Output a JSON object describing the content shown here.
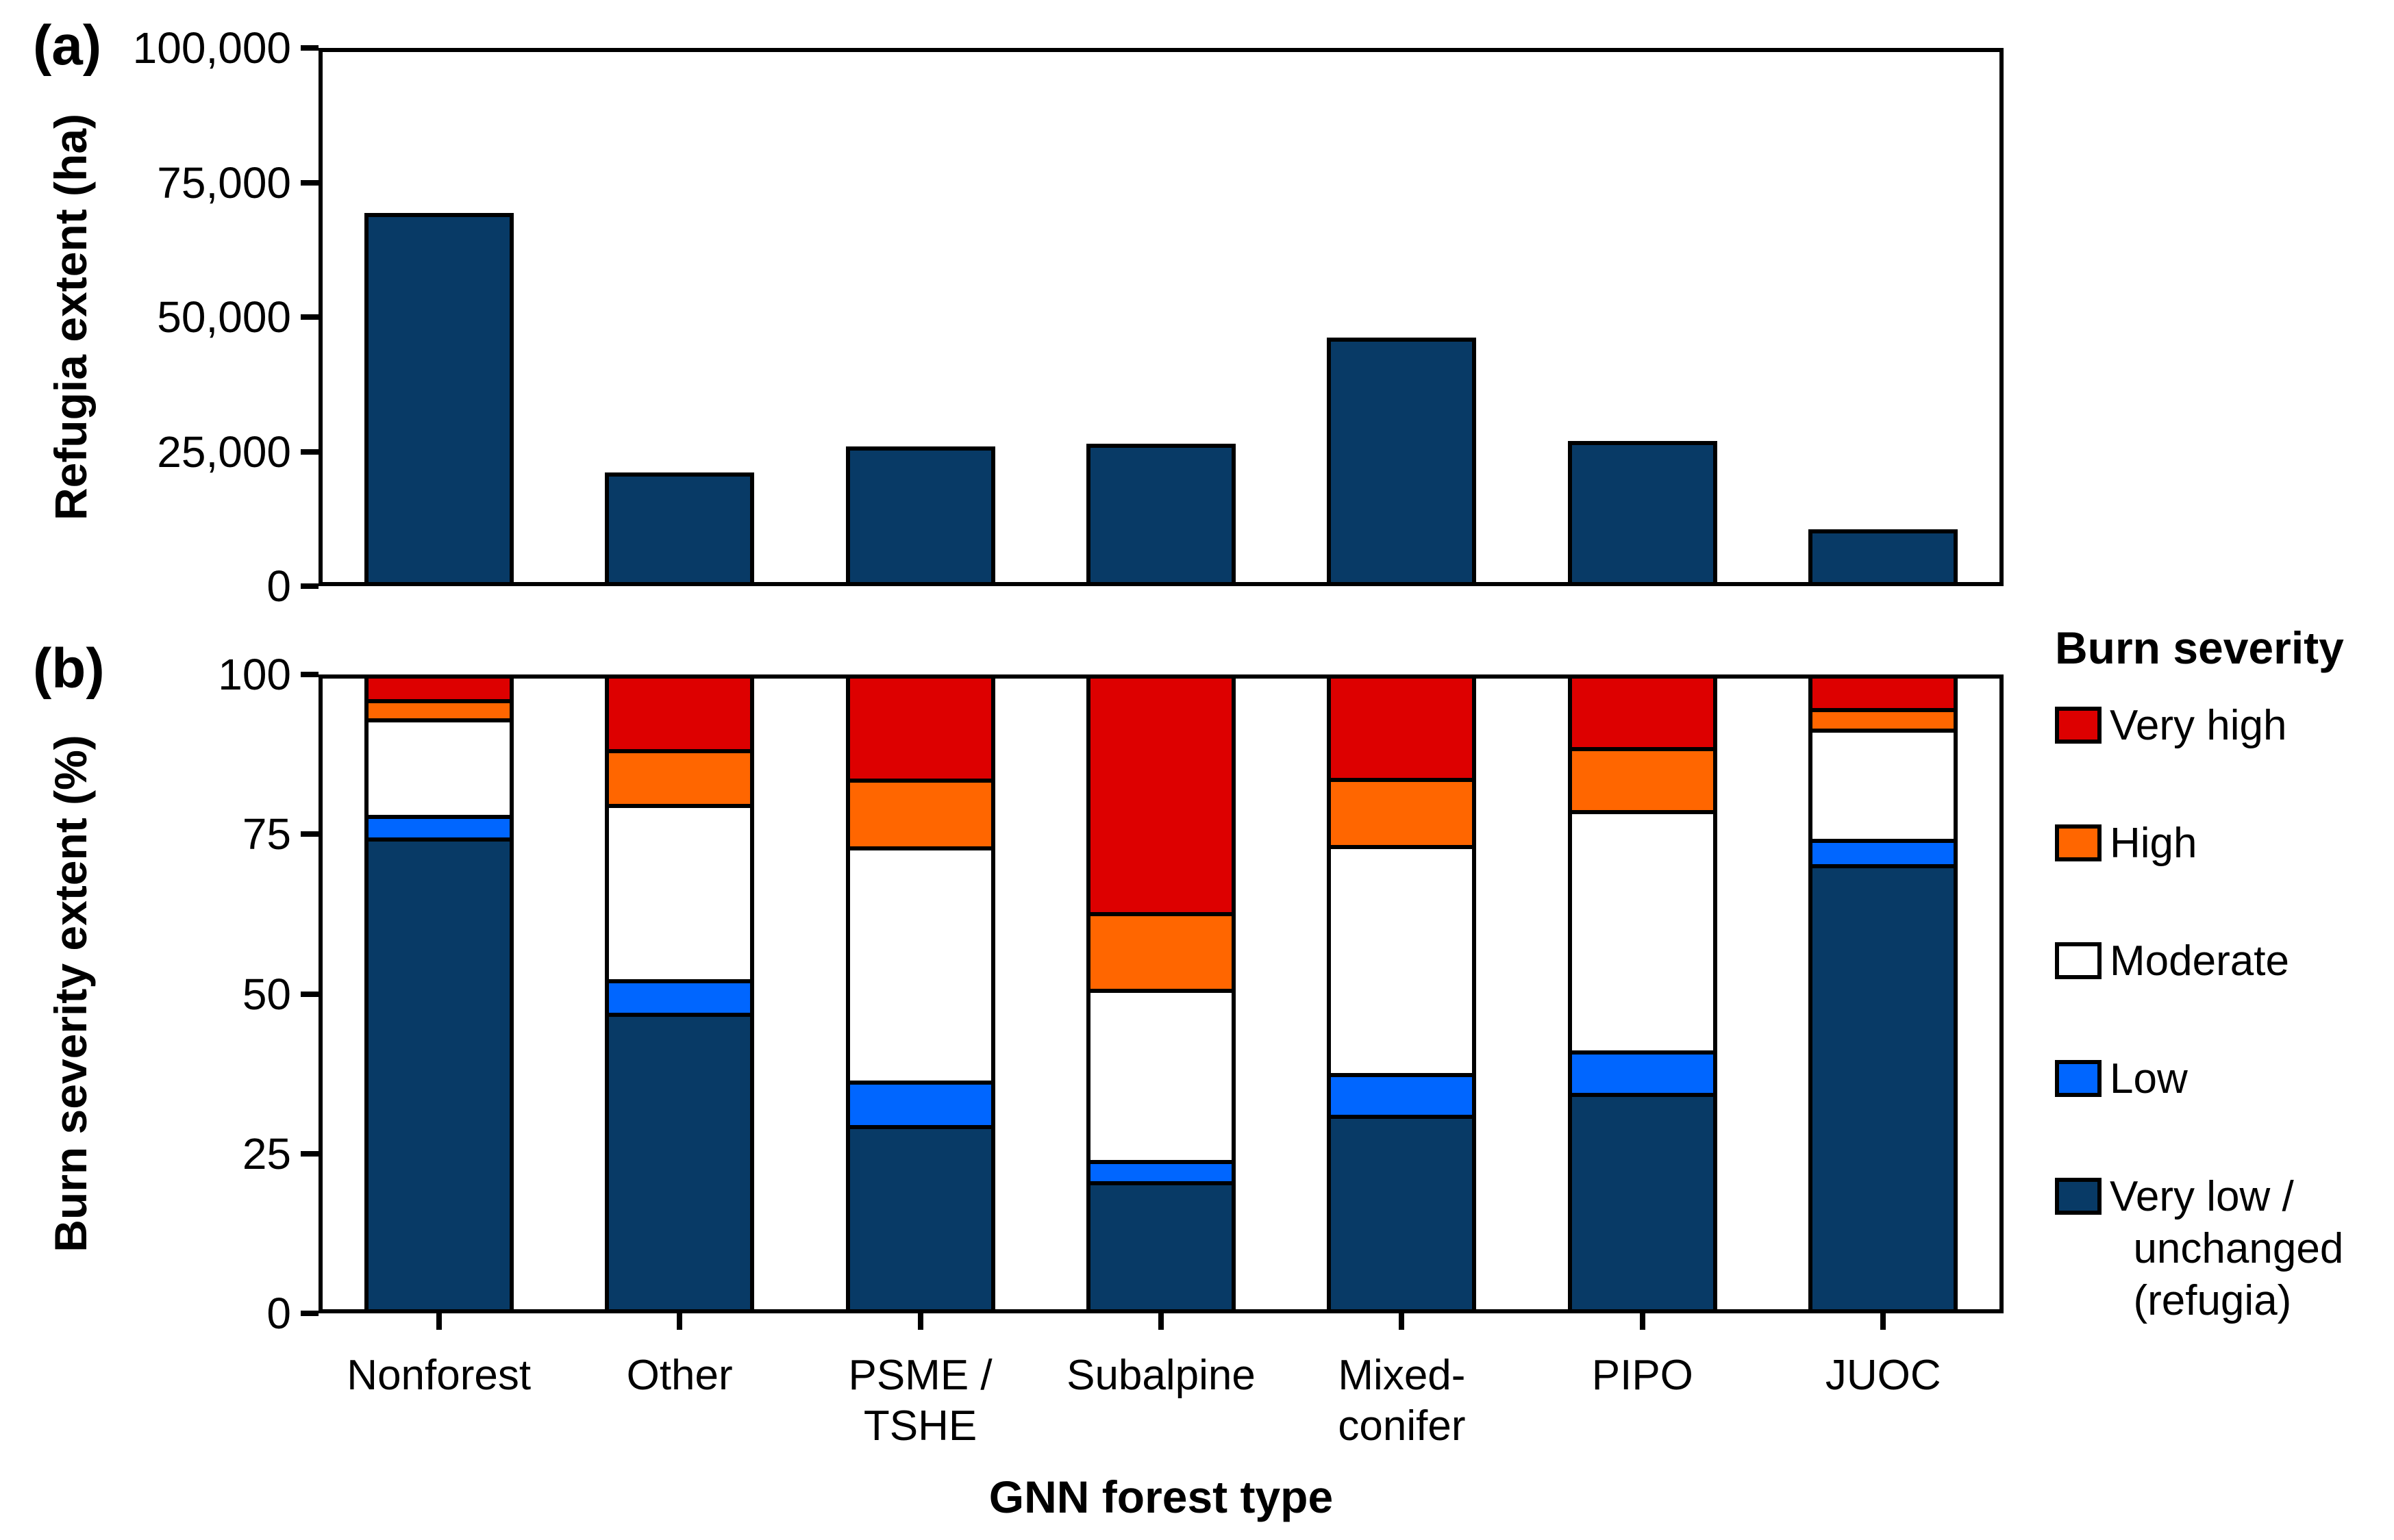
{
  "figure": {
    "panel_a_label": "(a)",
    "panel_b_label": "(b)",
    "panel_a_ylabel": "Refugia extent (ha)",
    "panel_b_ylabel": "Burn severity extent (%)",
    "xlabel": "GNN forest type"
  },
  "legend": {
    "title": "Burn severity",
    "items": [
      {
        "label": "Very high",
        "color": "#dd0000"
      },
      {
        "label": "High",
        "color": "#ff6600"
      },
      {
        "label": "Moderate",
        "color": "#ffffff"
      },
      {
        "label": "Low",
        "color": "#0066ff"
      },
      {
        "label": "Very low /\n  unchanged\n  (refugia)",
        "color": "#083a66"
      }
    ]
  },
  "chart_data": [
    {
      "type": "bar",
      "panel": "a",
      "title": "Refugia extent by GNN forest type",
      "categories": [
        "Nonforest",
        "Other",
        "PSME /\nTSHE",
        "Subalpine",
        "Mixed-\nconifer",
        "PIPO",
        "JUOC"
      ],
      "values": [
        69400,
        21100,
        25900,
        26400,
        46200,
        27000,
        10600
      ],
      "xlabel": "GNN forest type",
      "ylabel": "Refugia extent (ha)",
      "ylim": [
        0,
        100000
      ],
      "yticks": [
        "0",
        "25,000",
        "50,000",
        "75,000",
        "100,000"
      ],
      "bar_color": "#083a66",
      "grid": false
    },
    {
      "type": "bar",
      "panel": "b",
      "stacked": true,
      "title": "Burn severity extent by GNN forest type",
      "categories": [
        "Nonforest",
        "Other",
        "PSME /\nTSHE",
        "Subalpine",
        "Mixed-\nconifer",
        "PIPO",
        "JUOC"
      ],
      "series": [
        {
          "name": "Very low / unchanged (refugia)",
          "color": "#083a66",
          "values": [
            74.5,
            47.0,
            29.5,
            20.7,
            31.1,
            34.5,
            70.3
          ]
        },
        {
          "name": "Low",
          "color": "#0066ff",
          "values": [
            3.5,
            5.3,
            6.9,
            3.3,
            6.5,
            6.7,
            4.0
          ]
        },
        {
          "name": "Moderate",
          "color": "#ffffff",
          "values": [
            15.1,
            27.4,
            36.7,
            26.8,
            35.7,
            37.6,
            17.2
          ]
        },
        {
          "name": "High",
          "color": "#ff6600",
          "values": [
            3.0,
            8.6,
            10.6,
            12.0,
            10.5,
            9.8,
            3.2
          ]
        },
        {
          "name": "Very high",
          "color": "#dd0000",
          "values": [
            3.9,
            11.7,
            16.3,
            37.2,
            16.2,
            11.4,
            5.3
          ]
        }
      ],
      "xlabel": "GNN forest type",
      "ylabel": "Burn severity extent (%)",
      "ylim": [
        0,
        100
      ],
      "yticks": [
        "0",
        "25",
        "50",
        "75",
        "100"
      ],
      "legend_position": "right",
      "grid": false
    }
  ]
}
